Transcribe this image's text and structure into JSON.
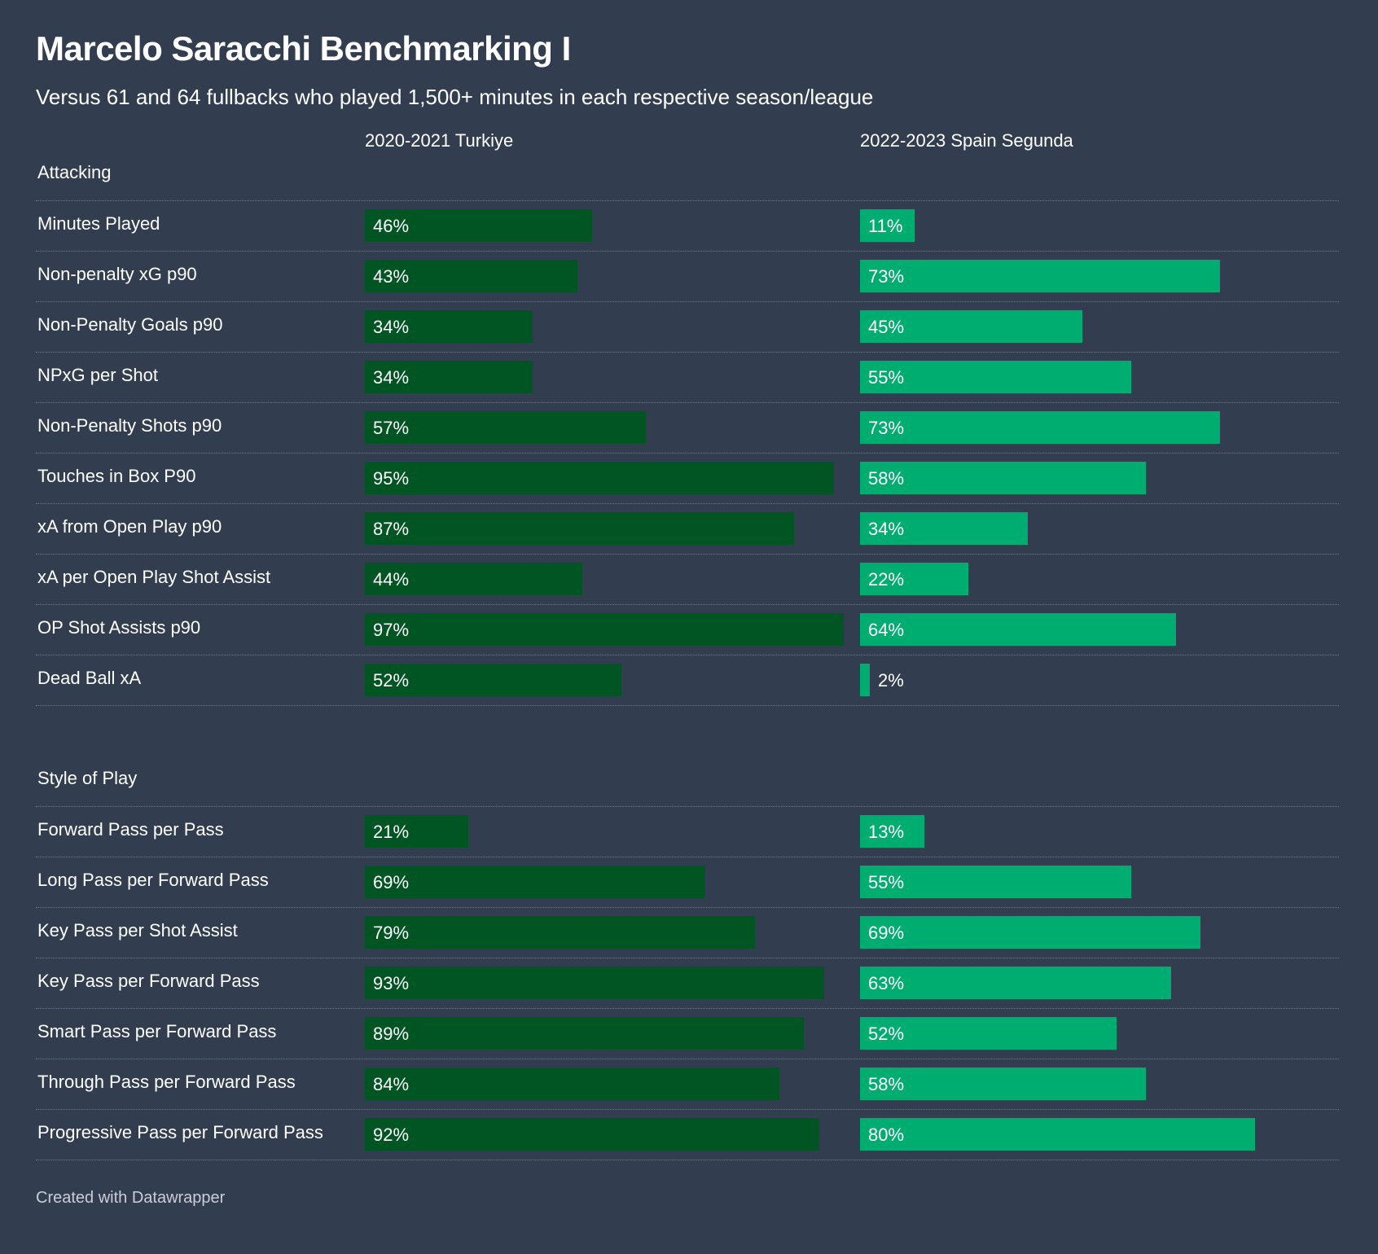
{
  "title": "Marcelo Saracchi Benchmarking I",
  "subtitle": "Versus 61 and 64 fullbacks who played 1,500+ minutes in each respective season/league",
  "footer": "Created with Datawrapper",
  "colors": {
    "background": "#323e4f",
    "series_1": "#005523",
    "series_2": "#00ad70"
  },
  "chart_data": {
    "type": "bar",
    "title": "Marcelo Saracchi Benchmarking I",
    "unit": "%",
    "xlim": [
      0,
      100
    ],
    "series": [
      {
        "name": "2020-2021 Turkiye"
      },
      {
        "name": "2022-2023 Spain Segunda"
      }
    ],
    "sections": [
      {
        "title": "Attacking",
        "rows": [
          {
            "label": "Minutes Played",
            "values": [
              46,
              11
            ]
          },
          {
            "label": "Non-penalty xG p90",
            "values": [
              43,
              73
            ]
          },
          {
            "label": "Non-Penalty Goals p90",
            "values": [
              34,
              45
            ]
          },
          {
            "label": "NPxG per Shot",
            "values": [
              34,
              55
            ]
          },
          {
            "label": "Non-Penalty Shots p90",
            "values": [
              57,
              73
            ]
          },
          {
            "label": "Touches in Box P90",
            "values": [
              95,
              58
            ]
          },
          {
            "label": "xA from Open Play p90",
            "values": [
              87,
              34
            ]
          },
          {
            "label": "xA per Open Play Shot Assist",
            "values": [
              44,
              22
            ]
          },
          {
            "label": "OP Shot Assists p90",
            "values": [
              97,
              64
            ]
          },
          {
            "label": "Dead Ball xA",
            "values": [
              52,
              2
            ]
          }
        ]
      },
      {
        "title": "Style of Play",
        "rows": [
          {
            "label": "Forward Pass per Pass",
            "values": [
              21,
              13
            ]
          },
          {
            "label": "Long Pass per Forward Pass",
            "values": [
              69,
              55
            ]
          },
          {
            "label": "Key Pass per Shot Assist",
            "values": [
              79,
              69
            ]
          },
          {
            "label": "Key Pass per Forward Pass",
            "values": [
              93,
              63
            ]
          },
          {
            "label": "Smart Pass per Forward Pass",
            "values": [
              89,
              52
            ]
          },
          {
            "label": "Through Pass per Forward Pass",
            "values": [
              84,
              58
            ]
          },
          {
            "label": "Progressive Pass per Forward Pass",
            "values": [
              92,
              80
            ]
          }
        ]
      }
    ]
  }
}
